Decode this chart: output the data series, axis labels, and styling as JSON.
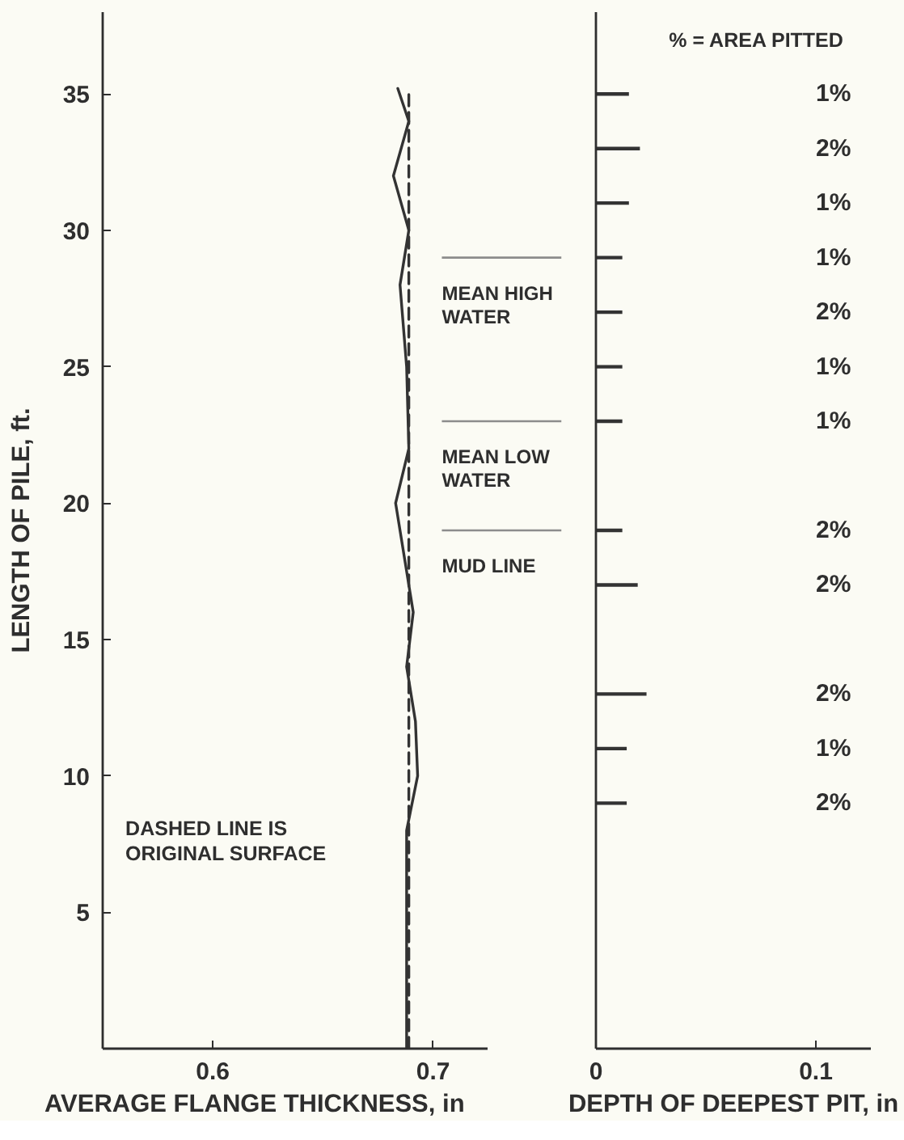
{
  "chart_data": [
    {
      "type": "line",
      "xlabel": "AVERAGE FLANGE THICKNESS, in",
      "ylabel": "LENGTH OF PILE, ft.",
      "xlim": [
        0.55,
        0.725
      ],
      "xticks": [
        0.6,
        0.7
      ],
      "ylim": [
        0,
        38
      ],
      "yticks": [
        5,
        10,
        15,
        20,
        25,
        30,
        35
      ],
      "series": [
        {
          "color": "#333333",
          "x": [
            0.684,
            0.689,
            0.682,
            0.689,
            0.685,
            0.688,
            0.689,
            0.683,
            0.691,
            0.688,
            0.692,
            0.693,
            0.688,
            0.688
          ],
          "values": [
            35.2,
            34,
            32,
            30,
            28,
            25,
            22,
            20,
            16,
            14,
            12,
            10,
            8,
            0
          ]
        },
        {
          "color": "#333333",
          "x": [
            0.689,
            0.689
          ],
          "values": [
            0,
            35.2
          ],
          "line_style": "dashed"
        }
      ],
      "ref_lines": [
        {
          "axis": "y",
          "value": 29,
          "label": "MEAN HIGH\nWATER",
          "color": "#8c8c8c"
        },
        {
          "axis": "y",
          "value": 23,
          "label": "MEAN LOW\nWATER",
          "color": "#8c8c8c"
        },
        {
          "axis": "y",
          "value": 19,
          "label": "MUD LINE",
          "color": "#8c8c8c"
        }
      ],
      "annotations": [
        "DASHED LINE IS\nORIGINAL SURFACE"
      ]
    },
    {
      "type": "bar",
      "orientation": "horizontal",
      "xlabel": "DEPTH OF DEEPEST PIT, in",
      "xlim": [
        0,
        0.125
      ],
      "xticks": [
        0,
        0.1
      ],
      "ylim": [
        0,
        38
      ],
      "tick_labels": "x",
      "x": [
        35,
        33,
        31,
        29,
        27,
        25,
        23,
        19,
        17,
        13,
        11,
        9
      ],
      "values": [
        0.015,
        0.02,
        0.015,
        0.012,
        0.012,
        0.012,
        0.012,
        0.012,
        0.019,
        0.023,
        0.014,
        0.014
      ],
      "color": "#333333",
      "annotations": [
        "% = AREA PITTED",
        "1%",
        "2%",
        "1%",
        "1%",
        "2%",
        "1%",
        "1%",
        "2%",
        "2%",
        "2%",
        "1%",
        "2%"
      ]
    }
  ]
}
